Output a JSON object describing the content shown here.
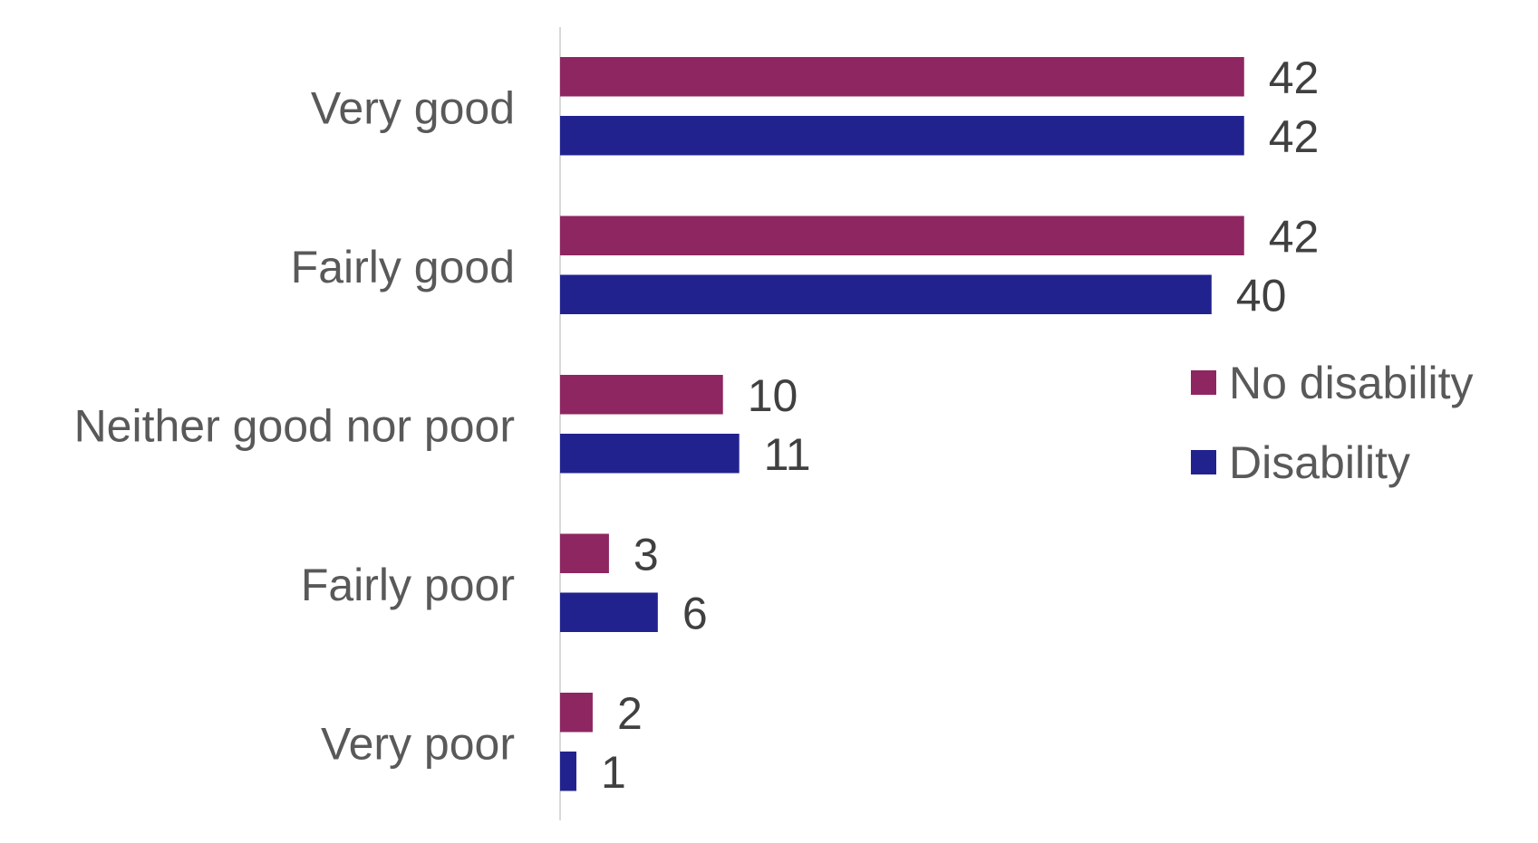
{
  "chart_data": {
    "type": "bar",
    "orientation": "horizontal",
    "categories": [
      "Very good",
      "Fairly good",
      "Neither good nor poor",
      "Fairly poor",
      "Very poor"
    ],
    "series": [
      {
        "name": "No disability",
        "color": "#8E2662",
        "values": [
          42,
          42,
          10,
          3,
          2
        ]
      },
      {
        "name": "Disability",
        "color": "#22228F",
        "values": [
          42,
          40,
          11,
          6,
          1
        ]
      }
    ],
    "xlim": [
      0,
      42
    ],
    "grid": false,
    "legend": "right",
    "data_labels": true
  }
}
